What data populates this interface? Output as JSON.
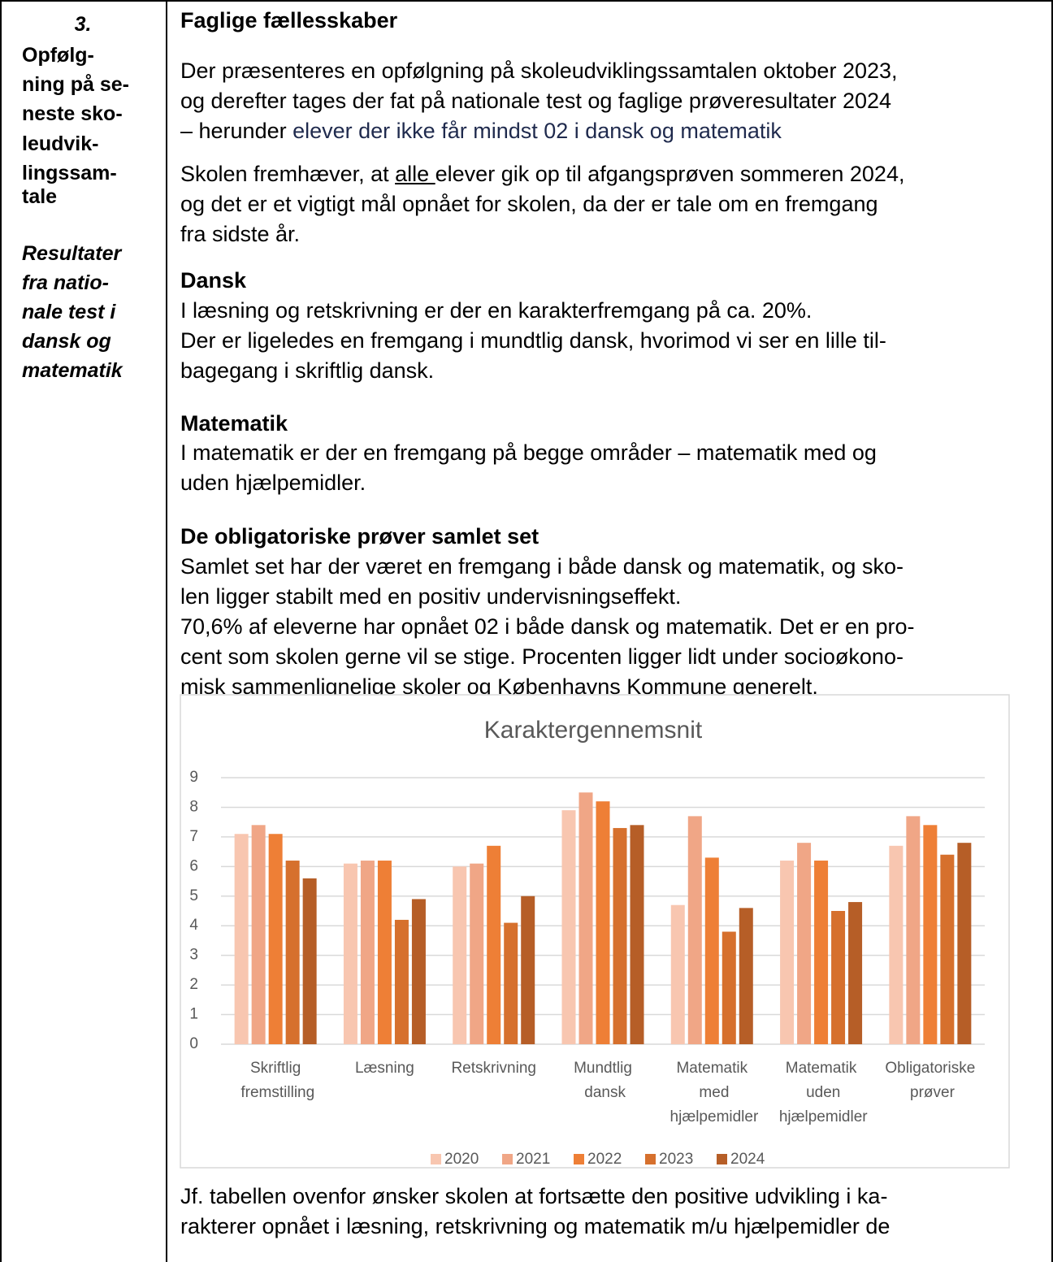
{
  "left": {
    "number": "3.",
    "title_lines": [
      "Opfølg-",
      "ning på se-",
      "neste sko-",
      "leudvik-",
      "lingssam-",
      "tale"
    ],
    "subtitle_lines": [
      "Resultater",
      "fra natio-",
      "nale test i",
      "dansk og",
      "matematik"
    ]
  },
  "sections": [
    {
      "heading": "Faglige fællesskaber",
      "paragraphs": [
        [
          "Der præsenteres en opfølgning på skoleudviklingssamtalen oktober 2023,",
          "og derefter tages der fat på nationale test og faglige prøveresultater 2024",
          [
            {
              "text": "– herunder "
            },
            {
              "text": "elever der ikke får mindst 02 i dansk og matematik",
              "color": "#1f2a4d"
            }
          ]
        ],
        [
          [
            {
              "text": "Skolen fremhæver, at "
            },
            {
              "text": "alle ",
              "underline": true
            },
            {
              "text": "elever gik op til afgangsprøven sommeren 2024,"
            }
          ],
          "og det er et vigtigt mål opnået for skolen, da der er tale om en fremgang",
          "fra sidste år."
        ]
      ]
    },
    {
      "heading": "Dansk",
      "paragraphs": [
        [
          "I læsning og retskrivning er der en karakterfremgang på ca. 20%.",
          "Der er ligeledes en fremgang i mundtlig dansk, hvorimod vi ser en lille til-",
          "bagegang i skriftlig dansk."
        ]
      ]
    },
    {
      "heading": "Matematik",
      "paragraphs": [
        [
          "I matematik er der en fremgang på begge områder – matematik med og",
          "uden hjælpemidler."
        ]
      ]
    },
    {
      "heading": "De obligatoriske prøver samlet set",
      "paragraphs": [
        [
          "Samlet set har der været en fremgang i både dansk og matematik, og sko-",
          "len ligger stabilt med en positiv undervisningseffekt.",
          "70,6% af eleverne har opnået 02 i både dansk og matematik. Det er en pro-",
          "cent som skolen gerne vil se stige. Procenten ligger lidt under socioøkono-",
          "misk sammenlignelige skoler og Københavns Kommune generelt."
        ]
      ]
    }
  ],
  "chart_data": {
    "type": "bar",
    "title": "Karaktergennemsnit",
    "categories": [
      "Skriftlig fremstilling",
      "Læsning",
      "Retskrivning",
      "Mundtlig dansk",
      "Matematik med hjælpemidler",
      "Matematik uden hjælpemidler",
      "Obligatoriske prøver"
    ],
    "series": [
      {
        "name": "2020",
        "color": "#f8c6b0",
        "values": [
          7.1,
          6.1,
          6.0,
          7.9,
          4.7,
          6.2,
          6.7
        ]
      },
      {
        "name": "2021",
        "color": "#f0a686",
        "values": [
          7.4,
          6.2,
          6.1,
          8.5,
          7.7,
          6.8,
          7.7
        ]
      },
      {
        "name": "2022",
        "color": "#ee7f36",
        "values": [
          7.1,
          6.2,
          6.7,
          8.2,
          6.3,
          6.2,
          7.4
        ]
      },
      {
        "name": "2023",
        "color": "#d6702d",
        "values": [
          6.2,
          4.2,
          4.1,
          7.3,
          3.8,
          4.5,
          6.4
        ]
      },
      {
        "name": "2024",
        "color": "#b65e27",
        "values": [
          5.6,
          4.9,
          5.0,
          7.4,
          4.6,
          4.8,
          6.8
        ]
      }
    ],
    "ylim": [
      0,
      9
    ],
    "yticks": [
      0,
      1,
      2,
      3,
      4,
      5,
      6,
      7,
      8,
      9
    ],
    "grid": true,
    "legend": "bottom"
  },
  "closing": {
    "lines": [
      "Jf. tabellen ovenfor ønsker skolen at fortsætte den positive udvikling i ka-",
      "rakterer opnået i læsning, retskrivning og matematik m/u hjælpemidler de"
    ]
  }
}
